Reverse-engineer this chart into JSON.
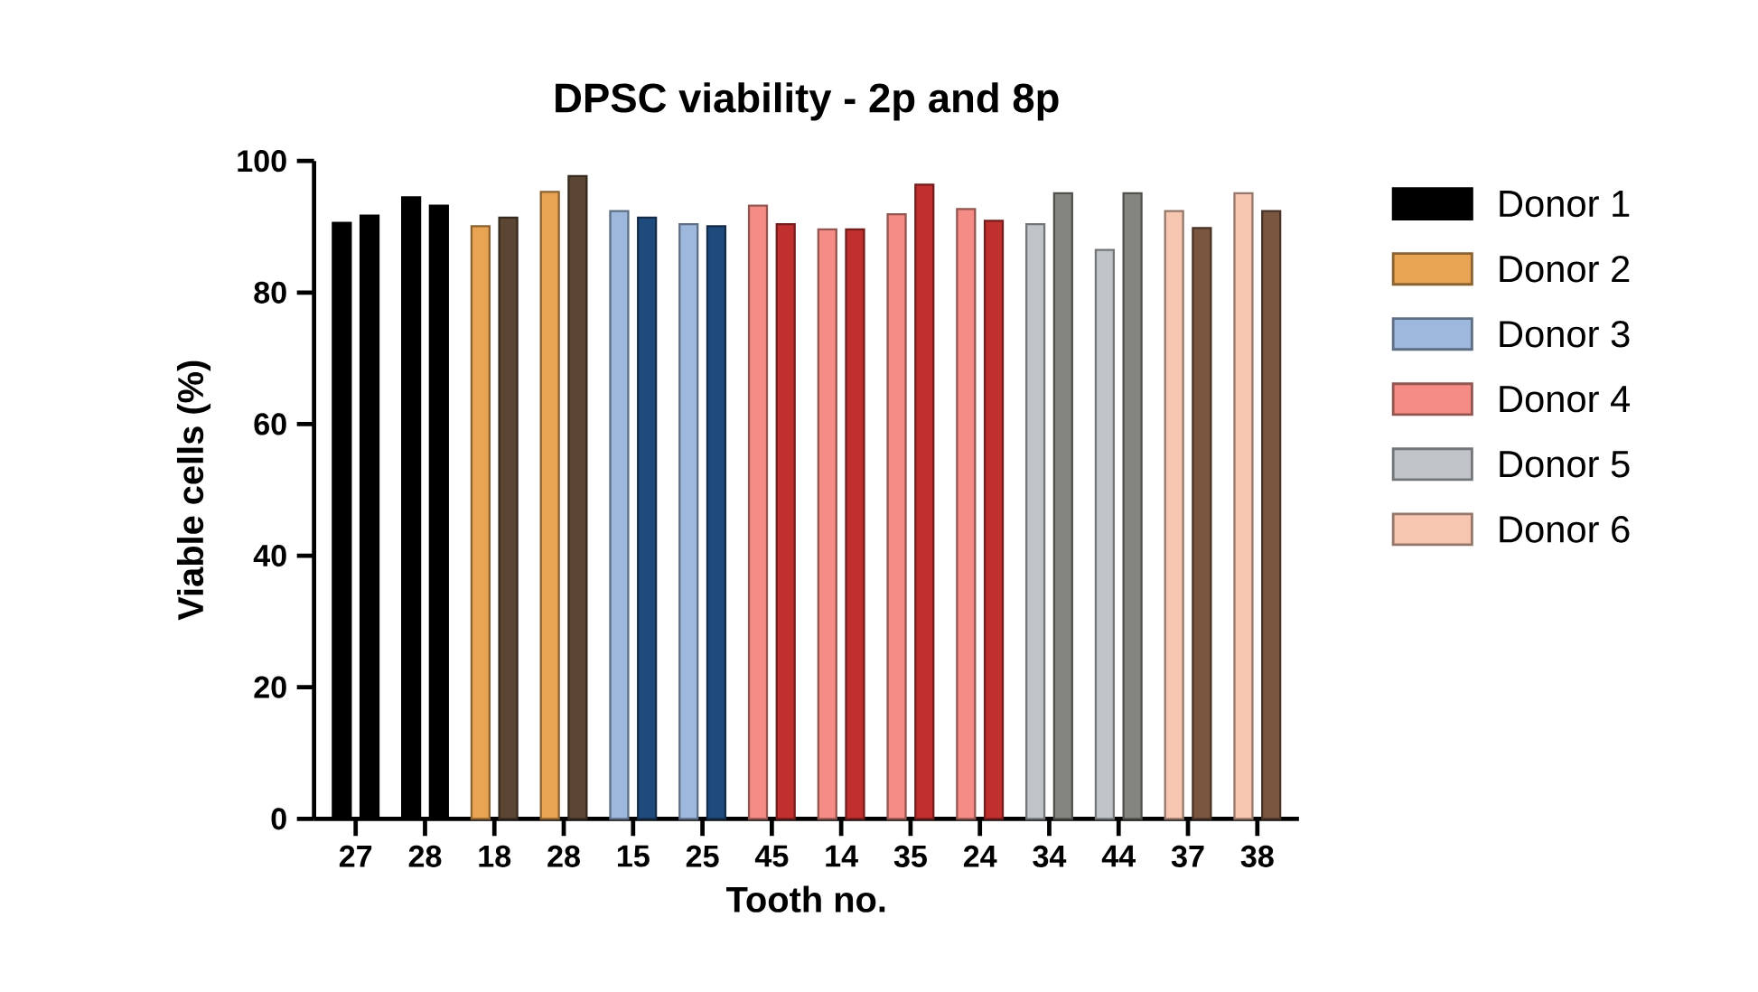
{
  "chart_data": {
    "type": "bar",
    "title": "DPSC viability - 2p and 8p",
    "xlabel": "Tooth no.",
    "ylabel": "Viable cells (%)",
    "categories": [
      "27",
      "28",
      "18",
      "28",
      "15",
      "25",
      "45",
      "14",
      "35",
      "24",
      "34",
      "44",
      "37",
      "38"
    ],
    "ylim": [
      0,
      100
    ],
    "yticks": [
      0,
      20,
      40,
      60,
      80,
      100
    ],
    "legend": "right",
    "series": [
      {
        "name": "Donor 1",
        "color": "#000000",
        "values": [
          90.6,
          94.5,
          null,
          null,
          null,
          null,
          null,
          null,
          null,
          null,
          null,
          null,
          null,
          null
        ]
      },
      {
        "name": "Donor 2",
        "color": "#e8a452",
        "values": [
          null,
          null,
          90.1,
          95.3,
          null,
          null,
          null,
          null,
          null,
          null,
          null,
          null,
          null,
          null
        ]
      },
      {
        "name": "Donor 3",
        "color": "#9db8dc",
        "values": [
          null,
          null,
          null,
          null,
          92.4,
          90.4,
          null,
          null,
          null,
          null,
          null,
          null,
          null,
          null
        ]
      },
      {
        "name": "Donor 4",
        "color": "#f58d86",
        "values": [
          null,
          null,
          null,
          null,
          null,
          null,
          93.2,
          89.6,
          91.9,
          92.7,
          null,
          null,
          null,
          null
        ]
      },
      {
        "name": "Donor 5",
        "color": "#c0c4c8",
        "values": [
          null,
          null,
          null,
          null,
          null,
          null,
          null,
          null,
          null,
          null,
          90.4,
          86.5,
          null,
          null
        ]
      },
      {
        "name": "Donor 6",
        "color": "#f6c6b0",
        "values": [
          null,
          null,
          null,
          null,
          null,
          null,
          null,
          null,
          null,
          null,
          null,
          null,
          92.4,
          95.1
        ]
      },
      {
        "color": "#000000",
        "values": [
          91.7,
          93.2,
          null,
          null,
          null,
          null,
          null,
          null,
          null,
          null,
          null,
          null,
          null,
          null
        ]
      },
      {
        "color": "#5a4632",
        "values": [
          null,
          null,
          91.4,
          97.7,
          null,
          null,
          null,
          null,
          null,
          null,
          null,
          null,
          null,
          null
        ]
      },
      {
        "color": "#1f4a7c",
        "values": [
          null,
          null,
          null,
          null,
          91.4,
          90.1,
          null,
          null,
          null,
          null,
          null,
          null,
          null,
          null
        ]
      },
      {
        "color": "#c0302f",
        "values": [
          null,
          null,
          null,
          null,
          null,
          null,
          90.4,
          89.6,
          96.4,
          90.9,
          null,
          null,
          null,
          null
        ]
      },
      {
        "color": "#858580",
        "values": [
          null,
          null,
          null,
          null,
          null,
          null,
          null,
          null,
          null,
          null,
          95.1,
          95.1,
          null,
          null
        ]
      },
      {
        "color": "#7a5540",
        "values": [
          null,
          null,
          null,
          null,
          null,
          null,
          null,
          null,
          null,
          null,
          null,
          null,
          89.8,
          92.4
        ]
      }
    ]
  }
}
